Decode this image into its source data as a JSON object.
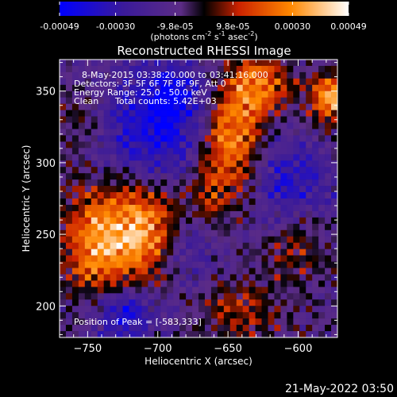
{
  "colorbar": {
    "tick_labels": [
      "-0.00049",
      "-0.00030",
      "-9.8e-05",
      "9.8e-05",
      "0.00030",
      "0.00049"
    ],
    "tick_values": [
      -0.00049,
      -0.0003,
      -9.8e-05,
      9.8e-05,
      0.0003,
      0.00049
    ],
    "range": [
      -0.00049,
      0.00049
    ],
    "unit_label": "(photons cm",
    "unit_sup1": "-2",
    "unit_mid": " s",
    "unit_sup2": "-1",
    "unit_mid2": " asec",
    "unit_sup3": "-2",
    "unit_end": ")",
    "colors": [
      "#0000ff",
      "#3a1a9a",
      "#5c2c86",
      "#000000",
      "#cc2200",
      "#ff8800",
      "#ffffff"
    ]
  },
  "chart_data": {
    "type": "heatmap",
    "title": "Reconstructed RHESSI Image",
    "xlabel": "Heliocentric X (arcsec)",
    "ylabel": "Heliocentric Y (arcsec)",
    "xlim": [
      -770,
      -572
    ],
    "ylim": [
      178,
      372
    ],
    "x_ticks": [
      -750,
      -700,
      -650,
      -600
    ],
    "y_ticks": [
      200,
      250,
      300,
      350
    ],
    "x_tick_labels": [
      "−750",
      "−700",
      "−650",
      "−600"
    ],
    "y_tick_labels": [
      "200",
      "250",
      "300",
      "350"
    ],
    "sources": [
      {
        "x": -705,
        "y": 255,
        "amp": 0.00049,
        "sx": 28,
        "sy": 26
      },
      {
        "x": -745,
        "y": 240,
        "amp": 0.0003,
        "sx": 18,
        "sy": 30
      },
      {
        "x": -645,
        "y": 320,
        "amp": 0.00042,
        "sx": 14,
        "sy": 30
      },
      {
        "x": -625,
        "y": 355,
        "amp": 0.0003,
        "sx": 16,
        "sy": 14
      },
      {
        "x": -578,
        "y": 345,
        "amp": 0.00046,
        "sx": 10,
        "sy": 12
      },
      {
        "x": -665,
        "y": 275,
        "amp": 0.00022,
        "sx": 10,
        "sy": 40
      },
      {
        "x": -600,
        "y": 240,
        "amp": 0.00018,
        "sx": 16,
        "sy": 20
      },
      {
        "x": -640,
        "y": 195,
        "amp": 0.0002,
        "sx": 22,
        "sy": 14
      },
      {
        "x": -755,
        "y": 330,
        "amp": 0.00016,
        "sx": 12,
        "sy": 16
      },
      {
        "x": -700,
        "y": 315,
        "amp": -0.0003,
        "sx": 30,
        "sy": 28
      },
      {
        "x": -675,
        "y": 245,
        "amp": -0.00042,
        "sx": 16,
        "sy": 22
      },
      {
        "x": -725,
        "y": 195,
        "amp": -0.00032,
        "sx": 16,
        "sy": 14
      },
      {
        "x": -605,
        "y": 285,
        "amp": -0.00024,
        "sx": 20,
        "sy": 20
      },
      {
        "x": -690,
        "y": 350,
        "amp": -0.00022,
        "sx": 20,
        "sy": 14
      }
    ],
    "annotations": {
      "line1": "8-May-2015 03:38:20.000 to 03:41:16.000",
      "line2": "Detectors: 3F 5F 6F 7F 8F 9F, Att 0",
      "line3": "Energy Range: 25.0 - 50.0 keV",
      "line4_a": "Clean",
      "line4_b": "Total counts: 5.42E+03",
      "peak": "Position of Peak = [-583,333]"
    }
  },
  "footer": {
    "timestamp": "21-May-2022 03:50"
  }
}
